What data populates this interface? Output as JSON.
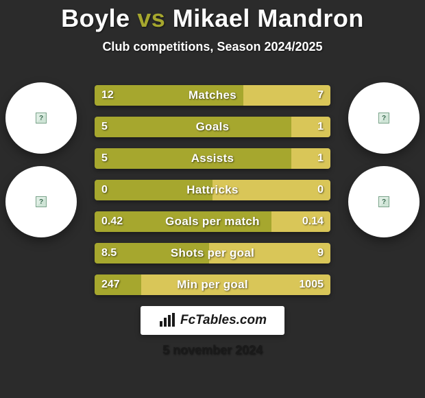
{
  "background_color": "#2b2b2b",
  "title": {
    "player1": "Boyle",
    "vs": "vs",
    "player2": "Mikael Mandron",
    "player1_color": "#ffffff",
    "vs_color": "#a6a72e",
    "player2_color": "#ffffff",
    "fontsize": 36
  },
  "subtitle": {
    "text": "Club competitions, Season 2024/2025",
    "color": "#ffffff",
    "fontsize": 18
  },
  "player1_color": "#a6a72e",
  "player2_color": "#d9c658",
  "circles": {
    "left": [
      {
        "diameter": 104
      },
      {
        "diameter": 104
      }
    ],
    "right": [
      {
        "diameter": 104
      },
      {
        "diameter": 104
      }
    ],
    "bg": "#ffffff"
  },
  "rows": [
    {
      "label": "Matches",
      "left": "12",
      "right": "7",
      "left_num": 12,
      "right_num": 7
    },
    {
      "label": "Goals",
      "left": "5",
      "right": "1",
      "left_num": 5,
      "right_num": 1
    },
    {
      "label": "Assists",
      "left": "5",
      "right": "1",
      "left_num": 5,
      "right_num": 1
    },
    {
      "label": "Hattricks",
      "left": "0",
      "right": "0",
      "left_num": 0,
      "right_num": 0
    },
    {
      "label": "Goals per match",
      "left": "0.42",
      "right": "0.14",
      "left_num": 0.42,
      "right_num": 0.14
    },
    {
      "label": "Shots per goal",
      "left": "8.5",
      "right": "9",
      "left_num": 8.5,
      "right_num": 9
    },
    {
      "label": "Min per goal",
      "left": "247",
      "right": "1005",
      "left_num": 247,
      "right_num": 1005
    }
  ],
  "row_style": {
    "height": 30,
    "gap": 16,
    "fontsize_value": 16,
    "fontsize_label": 17,
    "text_color": "#ffffff"
  },
  "brand": {
    "text": "FcTables.com",
    "bg": "#ffffff",
    "text_color": "#1a1a1a",
    "fontsize": 19
  },
  "date": {
    "text": "5 november 2024",
    "color": "#1a1a1a",
    "fontsize": 18
  }
}
